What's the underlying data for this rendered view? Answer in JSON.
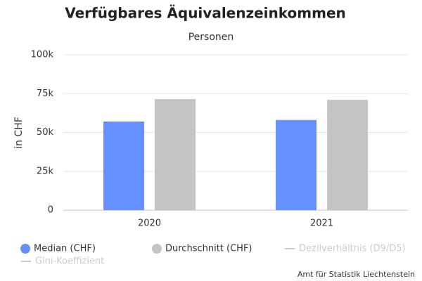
{
  "chart_data": {
    "type": "bar",
    "title": "Verfügbares Äquivalenzeinkommen",
    "subtitle": "Personen",
    "y_label": "in CHF",
    "credit": "Amt für Statistik Liechtenstein",
    "categories": [
      "2020",
      "2021"
    ],
    "series": [
      {
        "name": "Median (CHF)",
        "color": "#6690ff",
        "values": [
          57000,
          58000
        ],
        "visible": true
      },
      {
        "name": "Durchschnitt (CHF)",
        "color": "#c4c4c4",
        "values": [
          71500,
          71000
        ],
        "visible": true
      },
      {
        "name": "Dezilverhältnis (D9/D5)",
        "color": "#cccccc",
        "values": [
          null,
          null
        ],
        "visible": false
      },
      {
        "name": "Gini-Koeffizient",
        "color": "#cccccc",
        "values": [
          null,
          null
        ],
        "visible": false
      }
    ],
    "ylim": [
      0,
      100000
    ],
    "yticks": [
      0,
      {
        "value": 25000,
        "label": "25k"
      },
      {
        "value": 50000,
        "label": "50k"
      },
      {
        "value": 75000,
        "label": "75k"
      },
      {
        "value": 100000,
        "label": "100k"
      }
    ],
    "grid": true
  }
}
